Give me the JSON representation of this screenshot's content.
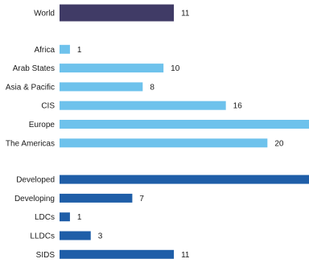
{
  "chart_data": {
    "type": "bar",
    "orientation": "horizontal",
    "title": "",
    "xlabel": "",
    "ylabel": "",
    "xlim": [
      0,
      24
    ],
    "grid": false,
    "legend": "none",
    "groups": [
      {
        "color": "#403b66",
        "bars": [
          {
            "label": "World",
            "value": 11,
            "value_label": "11"
          }
        ]
      },
      {
        "color": "#6ec2ec",
        "bars": [
          {
            "label": "Africa",
            "value": 1,
            "value_label": "1"
          },
          {
            "label": "Arab States",
            "value": 10,
            "value_label": "10"
          },
          {
            "label": "Asia & Pacific",
            "value": 8,
            "value_label": "8"
          },
          {
            "label": "CIS",
            "value": 16,
            "value_label": "16"
          },
          {
            "label": "Europe",
            "value": 24,
            "value_label": ""
          },
          {
            "label": "The Americas",
            "value": 20,
            "value_label": "20"
          }
        ]
      },
      {
        "color": "#1f5ea8",
        "bars": [
          {
            "label": "Developed",
            "value": 24,
            "value_label": ""
          },
          {
            "label": "Developing",
            "value": 7,
            "value_label": "7"
          },
          {
            "label": "LDCs",
            "value": 1,
            "value_label": "1"
          },
          {
            "label": "LLDCs",
            "value": 3,
            "value_label": "3"
          },
          {
            "label": "SIDS",
            "value": 11,
            "value_label": "11"
          }
        ]
      }
    ]
  }
}
